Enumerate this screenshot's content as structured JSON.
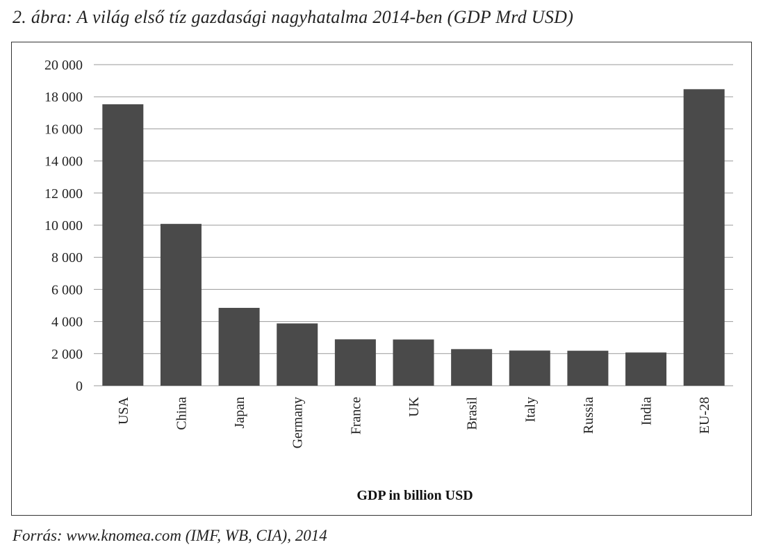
{
  "caption": "2. ábra: A világ első tíz gazdasági nagyhatalma 2014-ben (GDP Mrd USD)",
  "source": "Forrás: www.knomea.com (IMF, WB, CIA), 2014",
  "colors": {
    "bar": "#4a4a4a",
    "grid": "#9a9a9a",
    "frame": "#333333"
  },
  "chart_data": {
    "type": "bar",
    "title": "",
    "xlabel": "GDP in billion USD",
    "ylabel": "",
    "ylim": [
      0,
      20000
    ],
    "yticks": [
      0,
      2000,
      4000,
      6000,
      8000,
      10000,
      12000,
      14000,
      16000,
      18000,
      20000
    ],
    "ytick_labels": [
      "0",
      "2 000",
      "4 000",
      "6 000",
      "8 000",
      "10 000",
      "12 000",
      "14 000",
      "16 000",
      "18 000",
      "20 000"
    ],
    "grid": true,
    "legend": "none",
    "categories": [
      "USA",
      "China",
      "Japan",
      "Germany",
      "France",
      "UK",
      "Brasil",
      "Italy",
      "Russia",
      "India",
      "EU-28"
    ],
    "values": [
      17530,
      10080,
      4850,
      3880,
      2890,
      2880,
      2280,
      2190,
      2180,
      2070,
      18470
    ]
  }
}
